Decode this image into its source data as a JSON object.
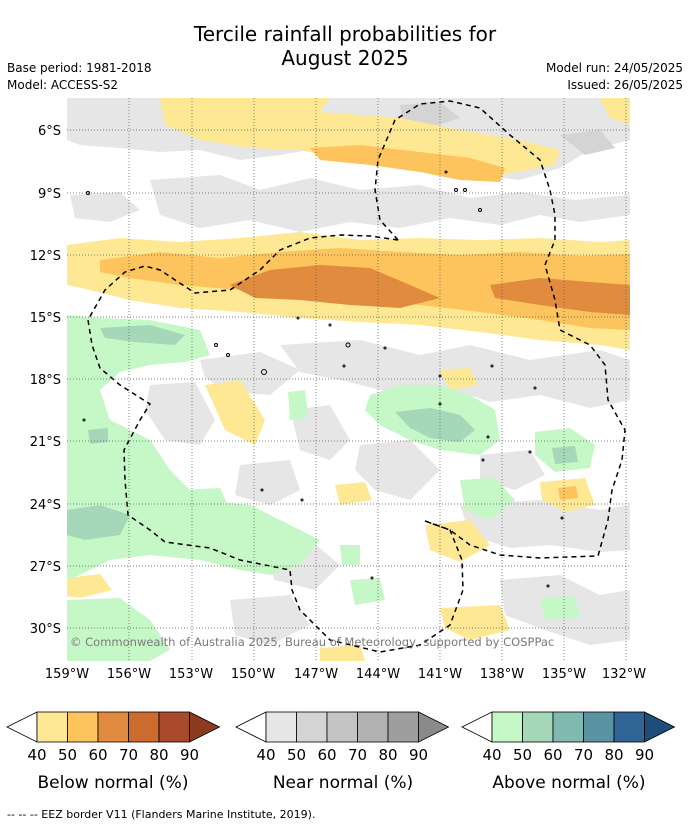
{
  "title": {
    "line1": "Tercile rainfall probabilities for",
    "line2": "August 2025"
  },
  "meta_left": {
    "base_period": "Base period: 1981-2018",
    "model": "Model: ACCESS-S2"
  },
  "meta_right": {
    "model_run": "Model run: 24/05/2025",
    "issued": "Issued: 26/05/2025"
  },
  "map": {
    "lat_labels": [
      "6°S",
      "9°S",
      "12°S",
      "15°S",
      "18°S",
      "21°S",
      "24°S",
      "27°S",
      "30°S"
    ],
    "lon_labels": [
      "159°W",
      "156°W",
      "153°W",
      "150°W",
      "147°W",
      "144°W",
      "141°W",
      "138°W",
      "135°W",
      "132°W"
    ],
    "copyright": "© Commonwealth of Australia 2025, Bureau of Meteorology, supported by COSPPac"
  },
  "colorbars": [
    {
      "name": "below",
      "title": "Below normal (%)",
      "ticks": [
        "40",
        "50",
        "60",
        "70",
        "80",
        "90"
      ],
      "colors": [
        "#ffffff",
        "#ffe894",
        "#fdc35d",
        "#e08b3e",
        "#cd6a2e",
        "#a8492a",
        "#8c3b1f"
      ]
    },
    {
      "name": "near",
      "title": "Near normal (%)",
      "ticks": [
        "40",
        "50",
        "60",
        "70",
        "80",
        "90"
      ],
      "colors": [
        "#ffffff",
        "#e6e6e6",
        "#d4d4d4",
        "#c4c4c4",
        "#b2b2b2",
        "#9e9e9e",
        "#8a8a8a"
      ]
    },
    {
      "name": "above",
      "title": "Above normal (%)",
      "ticks": [
        "40",
        "50",
        "60",
        "70",
        "80",
        "90"
      ],
      "colors": [
        "#ffffff",
        "#c6f7c6",
        "#a4d8b8",
        "#7fb9b0",
        "#5a94a3",
        "#2e6496",
        "#1e4d7a"
      ]
    }
  ],
  "footer": "--  --  -- EEZ border V11 (Flanders Marine Institute, 2019)."
}
